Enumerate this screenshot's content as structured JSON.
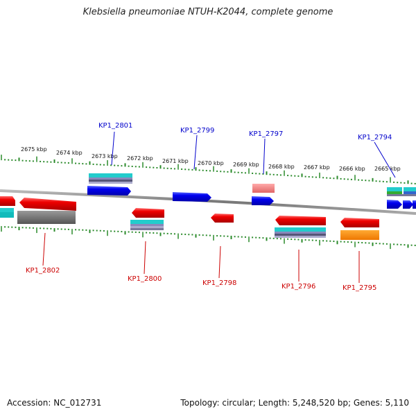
{
  "title": "Klebsiella pneumoniae NTUH-K2044, complete genome",
  "footer": {
    "accession": "Accession: NC_012731",
    "stats": "Topology: circular; Length: 5,248,520 bp; Genes: 5,110"
  },
  "colors": {
    "plus_label": "#0000cc",
    "minus_label": "#cc0000",
    "tick": "#2a8a2a",
    "backbone": "#888888"
  },
  "kbp_labels": [
    "2675 kbp",
    "2674 kbp",
    "2673 kbp",
    "2672 kbp",
    "2671 kbp",
    "2670 kbp",
    "2669 kbp",
    "2668 kbp",
    "2667 kbp",
    "2666 kbp",
    "2665 kbp"
  ],
  "plus_labels": [
    "KP1_2801",
    "KP1_2799",
    "KP1_2797",
    "KP1_2794"
  ],
  "minus_labels": [
    "KP1_2802",
    "KP1_2800",
    "KP1_2798",
    "KP1_2796",
    "KP1_2795"
  ]
}
